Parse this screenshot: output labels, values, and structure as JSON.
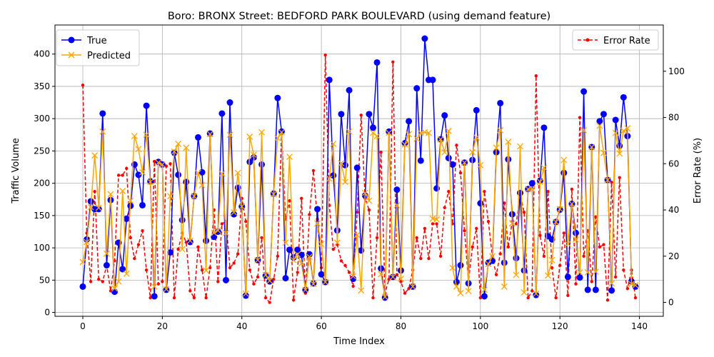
{
  "chart_data": {
    "type": "line",
    "title": "Boro: BRONX Street: BEDFORD PARK BOULEVARD (using demand feature)",
    "xlabel": "Time Index",
    "ylabel": "Traffic Volume",
    "y2label": "Error Rate (%)",
    "xlim": [
      -7,
      146
    ],
    "ylim": [
      -6,
      445
    ],
    "y2lim": [
      -6,
      120
    ],
    "xticks": [
      0,
      20,
      40,
      60,
      80,
      100,
      120,
      140
    ],
    "yticks": [
      0,
      50,
      100,
      150,
      200,
      250,
      300,
      350,
      400
    ],
    "y2ticks": [
      0,
      20,
      40,
      60,
      80,
      100
    ],
    "grid": true,
    "legend_left": "upper-left",
    "legend_right": "upper-right",
    "series": [
      {
        "name": "True",
        "axis": "left",
        "color": "#0000ff",
        "marker": "circle",
        "dashed": false,
        "values": [
          40,
          113,
          172,
          160,
          160,
          308,
          73,
          174,
          32,
          108,
          67,
          145,
          165,
          229,
          213,
          166,
          320,
          203,
          25,
          233,
          229,
          35,
          93,
          247,
          213,
          143,
          202,
          109,
          180,
          271,
          217,
          111,
          277,
          117,
          125,
          308,
          50,
          325,
          152,
          193,
          164,
          26,
          233,
          240,
          81,
          229,
          57,
          48,
          184,
          332,
          280,
          53,
          97,
          85,
          97,
          89,
          35,
          90,
          45,
          160,
          59,
          47,
          360,
          212,
          127,
          307,
          228,
          344,
          52,
          224,
          96,
          181,
          307,
          286,
          387,
          68,
          23,
          280,
          55,
          190,
          65,
          262,
          296,
          40,
          347,
          235,
          424,
          360,
          360,
          192,
          268,
          305,
          239,
          229,
          47,
          73,
          232,
          45,
          236,
          313,
          169,
          25,
          77,
          80,
          248,
          324,
          77,
          237,
          152,
          84,
          185,
          65,
          191,
          200,
          27,
          204,
          286,
          118,
          113,
          140,
          159,
          216,
          55,
          168,
          123,
          54,
          342,
          35,
          256,
          35,
          296,
          307,
          205,
          34,
          298,
          258,
          333,
          273,
          48,
          40
        ]
      },
      {
        "name": "Predicted",
        "axis": "left",
        "color": "#ffa500",
        "marker": "x",
        "dashed": false,
        "values": [
          78,
          109,
          163,
          243,
          162,
          280,
          91,
          183,
          37,
          48,
          188,
          60,
          173,
          273,
          253,
          217,
          275,
          202,
          40,
          232,
          229,
          36,
          180,
          249,
          261,
          98,
          255,
          111,
          180,
          216,
          197,
          65,
          276,
          123,
          127,
          215,
          123,
          275,
          155,
          216,
          164,
          29,
          272,
          244,
          81,
          279,
          58,
          49,
          183,
          270,
          279,
          108,
          241,
          81,
          90,
          76,
          35,
          86,
          44,
          138,
          106,
          47,
          207,
          261,
          108,
          231,
          202,
          280,
          56,
          120,
          34,
          185,
          173,
          278,
          273,
          59,
          24,
          278,
          55,
          166,
          52,
          260,
          276,
          40,
          269,
          278,
          279,
          278,
          145,
          144,
          268,
          248,
          281,
          69,
          40,
          30,
          232,
          33,
          248,
          271,
          228,
          35,
          75,
          87,
          255,
          282,
          40,
          264,
          138,
          58,
          257,
          31,
          191,
          191,
          29,
          202,
          224,
          57,
          81,
          140,
          160,
          236,
          106,
          168,
          113,
          62,
          282,
          62,
          256,
          63,
          289,
          247,
          205,
          45,
          278,
          246,
          281,
          285,
          44,
          42
        ]
      },
      {
        "name": "Error Rate",
        "axis": "right",
        "color": "#ff0000",
        "marker": "dot",
        "dashed": true,
        "values": [
          94,
          30,
          9,
          48,
          10,
          9,
          16,
          5,
          18,
          55,
          55,
          58,
          28,
          19,
          25,
          31,
          14,
          2,
          61,
          8,
          9,
          59,
          60,
          2,
          23,
          30,
          26,
          5,
          2,
          24,
          14,
          2,
          15,
          40,
          9,
          34,
          35,
          15,
          17,
          21,
          45,
          35,
          14,
          8,
          11,
          28,
          2,
          0,
          10,
          20,
          74,
          36,
          44,
          1,
          13,
          45,
          4,
          38,
          57,
          36,
          15,
          107,
          42,
          23,
          25,
          18,
          16,
          13,
          7,
          39,
          81,
          45,
          40,
          2,
          28,
          65,
          4,
          10,
          104,
          12,
          9,
          4,
          6,
          14,
          28,
          19,
          32,
          19,
          34,
          34,
          20,
          41,
          48,
          34,
          68,
          56,
          31,
          9,
          24,
          32,
          2,
          48,
          35,
          20,
          12,
          21,
          43,
          24,
          35,
          34,
          47,
          39,
          2,
          5,
          98,
          29,
          20,
          48,
          15,
          2,
          16,
          30,
          3,
          49,
          8,
          80,
          20,
          31,
          9,
          37,
          24,
          25,
          1,
          52,
          11,
          54,
          14,
          6,
          14,
          2
        ]
      }
    ]
  }
}
